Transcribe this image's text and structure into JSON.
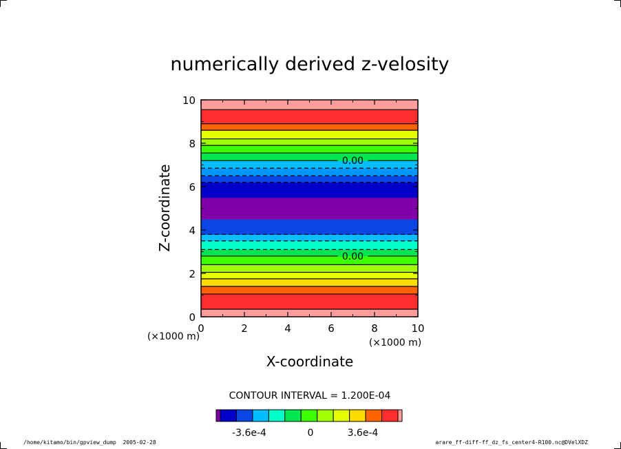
{
  "chart_data": {
    "type": "heatmap",
    "title": "numerically derived z-velosity",
    "xlabel": "X-coordinate",
    "ylabel": "Z-coordinate",
    "x_unit": "(×1000 m)",
    "z_unit": "(×1000 m)",
    "xlim": [
      0,
      10
    ],
    "ylim": [
      0,
      10
    ],
    "x_ticks": [
      "0",
      "2",
      "4",
      "6",
      "8",
      "10"
    ],
    "y_ticks": [
      "0",
      "2",
      "4",
      "6",
      "8",
      "10"
    ],
    "grid": false,
    "varies_along": "z",
    "z_profile_note_values": "band color (level index 0-14) vs z; uniform in x",
    "bands": [
      {
        "z0": 0.0,
        "z1": 0.35,
        "level": 14
      },
      {
        "z0": 0.35,
        "z1": 1.05,
        "level": 13
      },
      {
        "z0": 1.05,
        "z1": 1.4,
        "level": 12
      },
      {
        "z0": 1.4,
        "z1": 1.75,
        "level": 11
      },
      {
        "z0": 1.75,
        "z1": 2.05,
        "level": 10
      },
      {
        "z0": 2.05,
        "z1": 2.4,
        "level": 9
      },
      {
        "z0": 2.4,
        "z1": 2.8,
        "level": 8
      },
      {
        "z0": 2.8,
        "z1": 3.1,
        "level": 7
      },
      {
        "z0": 3.1,
        "z1": 3.5,
        "level": 6
      },
      {
        "z0": 3.5,
        "z1": 3.8,
        "level": 5
      },
      {
        "z0": 3.8,
        "z1": 4.5,
        "level": 2
      },
      {
        "z0": 4.5,
        "z1": 5.5,
        "level": 0
      },
      {
        "z0": 5.5,
        "z1": 6.2,
        "level": 1
      },
      {
        "z0": 6.2,
        "z1": 6.5,
        "level": 3
      },
      {
        "z0": 6.5,
        "z1": 6.85,
        "level": 4
      },
      {
        "z0": 6.85,
        "z1": 7.2,
        "level": 5
      },
      {
        "z0": 7.2,
        "z1": 7.55,
        "level": 7
      },
      {
        "z0": 7.55,
        "z1": 7.9,
        "level": 8
      },
      {
        "z0": 7.9,
        "z1": 8.2,
        "level": 9
      },
      {
        "z0": 8.2,
        "z1": 8.6,
        "level": 10
      },
      {
        "z0": 8.6,
        "z1": 8.9,
        "level": 12
      },
      {
        "z0": 8.9,
        "z1": 9.55,
        "level": 13
      },
      {
        "z0": 9.55,
        "z1": 10.0,
        "level": 14
      }
    ],
    "contours": [
      {
        "z": 0.35,
        "style": "solid"
      },
      {
        "z": 1.05,
        "style": "solid"
      },
      {
        "z": 1.4,
        "style": "solid"
      },
      {
        "z": 1.75,
        "style": "solid"
      },
      {
        "z": 2.05,
        "style": "solid"
      },
      {
        "z": 2.4,
        "style": "solid"
      },
      {
        "z": 2.8,
        "style": "solid",
        "label": "0.00"
      },
      {
        "z": 3.1,
        "style": "dashed"
      },
      {
        "z": 3.5,
        "style": "dashed"
      },
      {
        "z": 3.8,
        "style": "dashed"
      },
      {
        "z": 6.2,
        "style": "dashed"
      },
      {
        "z": 6.5,
        "style": "dashed"
      },
      {
        "z": 6.85,
        "style": "dashed"
      },
      {
        "z": 7.2,
        "style": "solid",
        "label": "0.00"
      },
      {
        "z": 7.55,
        "style": "solid"
      },
      {
        "z": 7.9,
        "style": "solid"
      },
      {
        "z": 8.2,
        "style": "solid"
      },
      {
        "z": 8.6,
        "style": "solid"
      },
      {
        "z": 8.9,
        "style": "solid"
      },
      {
        "z": 9.55,
        "style": "solid"
      }
    ],
    "contour_interval_text": "CONTOUR INTERVAL = 1.200E-04",
    "colorbar": {
      "colors": [
        "#7F00A6",
        "#0000C8",
        "#0A46E6",
        "#00BEFF",
        "#00FFC8",
        "#00E650",
        "#3CFF00",
        "#A0FF00",
        "#E6FF00",
        "#FFDC00",
        "#FF6400",
        "#FF2D2D",
        "#FF9C9C"
      ],
      "tick_labels": [
        "-3.6e-4",
        "0",
        "3.6e-4"
      ]
    }
  },
  "level_colors": [
    "#7F00A6",
    "#0000C8",
    "#0A46E6",
    "#0A46E6",
    "#0096FF",
    "#00BEFF",
    "#00FFC8",
    "#00E650",
    "#3CFF00",
    "#A0FF00",
    "#E6FF00",
    "#FFDC00",
    "#FF6400",
    "#FF2D2D",
    "#FF9C9C"
  ],
  "footer": {
    "left": "/home/kitamo/bin/gpview_dump  2005-02-28",
    "right": "arare_ff-diff-ff_dz_fs_center4-R100.nc@DVelXDZ"
  }
}
